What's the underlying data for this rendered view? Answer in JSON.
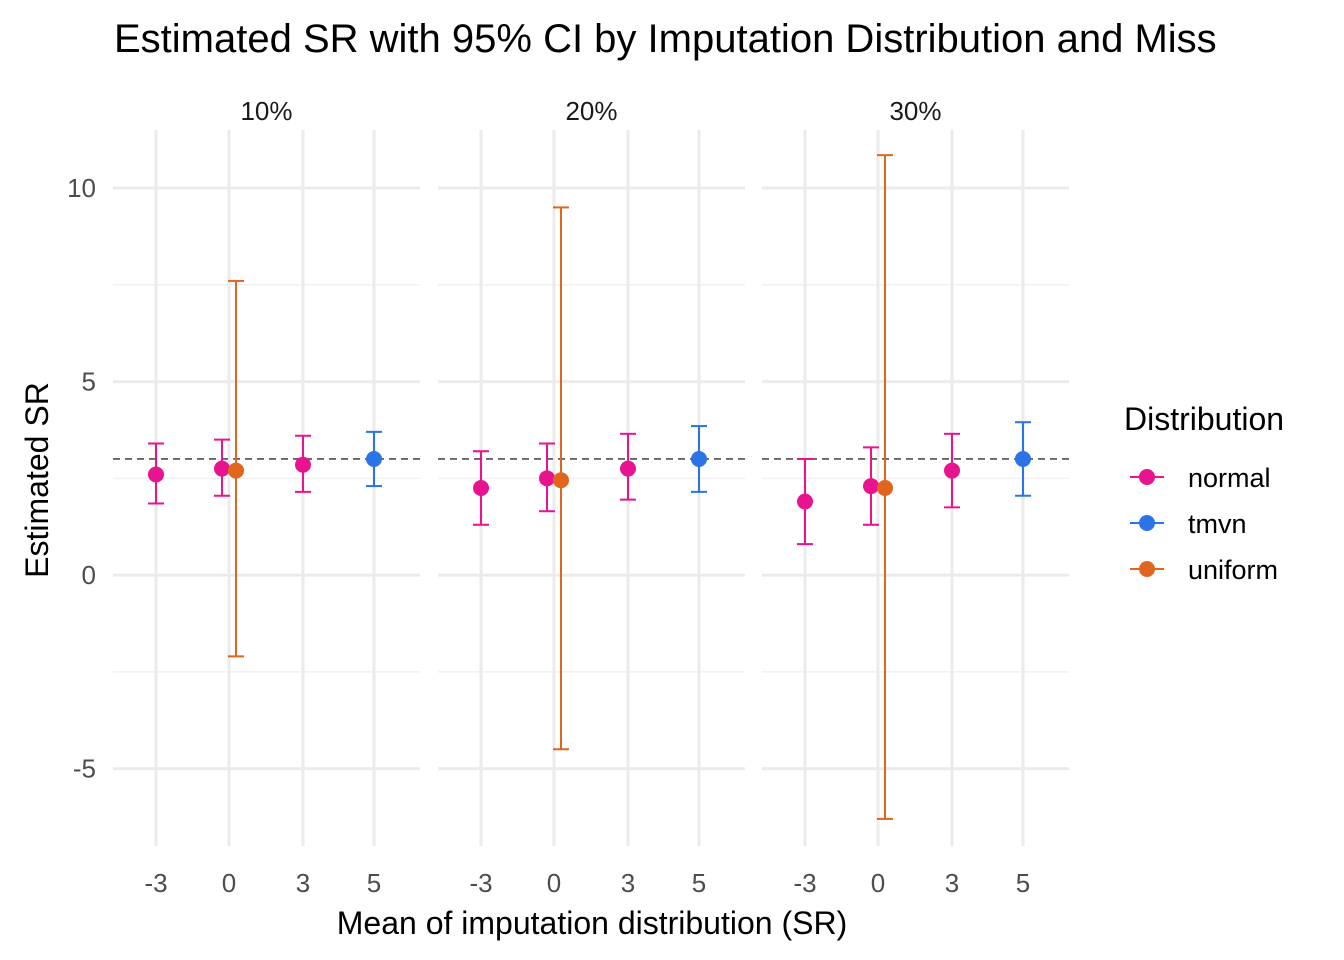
{
  "chart_data": {
    "type": "scatter",
    "title": "Estimated SR with 95% CI by Imputation Distribution and Miss",
    "xlabel": "Mean of imputation distribution (SR)",
    "ylabel": "Estimated SR",
    "x_ticks": [
      "-3",
      "0",
      "3",
      "5"
    ],
    "y_ticks": [
      "10",
      "5",
      "0",
      "-5"
    ],
    "ylim": [
      -7.0,
      11.5
    ],
    "reference_line": 3,
    "legend": {
      "title": "Distribution",
      "position": "right",
      "entries": [
        "normal",
        "tmvn",
        "uniform"
      ]
    },
    "colors": {
      "normal": "#e7138f",
      "tmvn": "#2b74e8",
      "uniform": "#e0651d"
    },
    "panels": [
      {
        "label": "10%",
        "points": [
          {
            "series": "normal",
            "x": "-3",
            "y": 2.6,
            "lo": 1.85,
            "hi": 3.4
          },
          {
            "series": "normal",
            "x": "0",
            "y": 2.75,
            "lo": 2.05,
            "hi": 3.5
          },
          {
            "series": "uniform",
            "x": "0",
            "y": 2.7,
            "lo": -2.1,
            "hi": 7.6
          },
          {
            "series": "normal",
            "x": "3",
            "y": 2.85,
            "lo": 2.15,
            "hi": 3.6
          },
          {
            "series": "tmvn",
            "x": "5",
            "y": 3.0,
            "lo": 2.3,
            "hi": 3.7
          }
        ]
      },
      {
        "label": "20%",
        "points": [
          {
            "series": "normal",
            "x": "-3",
            "y": 2.25,
            "lo": 1.3,
            "hi": 3.2
          },
          {
            "series": "normal",
            "x": "0",
            "y": 2.5,
            "lo": 1.65,
            "hi": 3.4
          },
          {
            "series": "uniform",
            "x": "0",
            "y": 2.45,
            "lo": -4.5,
            "hi": 9.5
          },
          {
            "series": "normal",
            "x": "3",
            "y": 2.75,
            "lo": 1.95,
            "hi": 3.65
          },
          {
            "series": "tmvn",
            "x": "5",
            "y": 3.0,
            "lo": 2.15,
            "hi": 3.85
          }
        ]
      },
      {
        "label": "30%",
        "points": [
          {
            "series": "normal",
            "x": "-3",
            "y": 1.9,
            "lo": 0.8,
            "hi": 3.0
          },
          {
            "series": "normal",
            "x": "0",
            "y": 2.3,
            "lo": 1.3,
            "hi": 3.3
          },
          {
            "series": "uniform",
            "x": "0",
            "y": 2.25,
            "lo": -6.3,
            "hi": 10.85
          },
          {
            "series": "normal",
            "x": "3",
            "y": 2.7,
            "lo": 1.75,
            "hi": 3.65
          },
          {
            "series": "tmvn",
            "x": "5",
            "y": 3.0,
            "lo": 2.05,
            "hi": 3.95
          }
        ]
      }
    ]
  }
}
